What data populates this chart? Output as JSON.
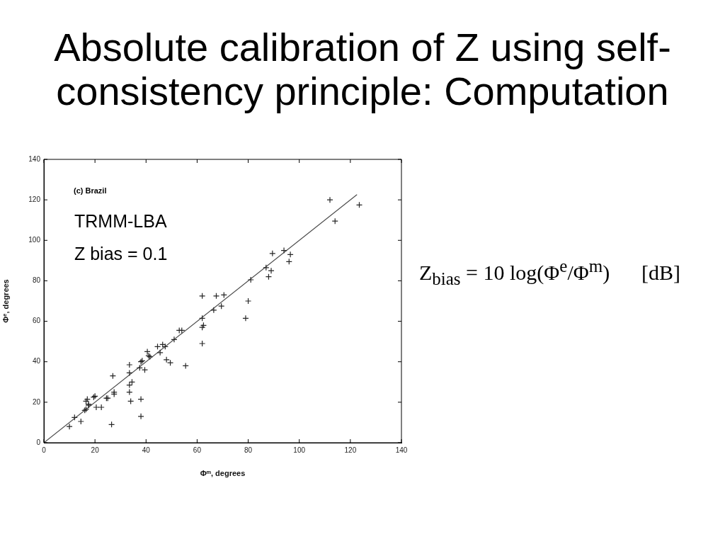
{
  "chart_data": {
    "type": "scatter",
    "title": "Absolute calibration of Z using self-consistency principle: Computation",
    "xlabel": "Φᵐ, degrees",
    "ylabel": "Φᵉ, degrees",
    "annotations": [
      "(c) Brazil",
      "TRMM-LBA",
      "Z bias = 0.1",
      "Z$_{bias}$ = 10 log(Φ$^{e}$/Φ$^{m}$)      [dB]"
    ],
    "series": [
      {
        "type": "scatter",
        "color": "#262626",
        "marker": "cross",
        "x": [
          10,
          12,
          14.5,
          16,
          16.5,
          16.5,
          17,
          17.5,
          17.5,
          19.5,
          20,
          20.5,
          22.5,
          24.5,
          25,
          26.5,
          27,
          27.5,
          27.5,
          33.5,
          33.5,
          33.5,
          34.5,
          33.5,
          34,
          38,
          38,
          37.5,
          38,
          38.5,
          39.5,
          40.5,
          41,
          41.5,
          44.5,
          45.5,
          46.5,
          47.5,
          48,
          49.5,
          51,
          53,
          54,
          55.5,
          62,
          67.5,
          70.5,
          66.5,
          69.5,
          62,
          62.5,
          62,
          62,
          81,
          80,
          79,
          87,
          89,
          88,
          89.5,
          94,
          96.5,
          96,
          112,
          114,
          123.5
        ],
        "values": [
          8,
          12.5,
          10.5,
          16,
          16.5,
          20.5,
          21.5,
          19,
          18.5,
          22.5,
          23,
          17.5,
          17.5,
          22,
          22,
          9,
          33,
          25,
          24,
          38.5,
          34.5,
          28.5,
          30,
          25,
          20.5,
          21.5,
          13,
          37,
          40,
          40.5,
          36,
          45,
          43,
          42.5,
          47.5,
          44.5,
          48.5,
          47.5,
          41,
          39.5,
          51,
          55.5,
          55.5,
          38,
          72.5,
          72.5,
          73,
          65.5,
          67.5,
          61.5,
          58,
          57,
          49,
          80.5,
          70,
          61.5,
          86.5,
          85,
          82,
          93.5,
          95,
          93,
          89.5,
          120,
          109.5,
          117.5
        ]
      },
      {
        "type": "line",
        "color": "#4d4d4d",
        "x": [
          0,
          122.5
        ],
        "values": [
          0,
          122.5
        ]
      }
    ],
    "xlim": [
      0,
      140
    ],
    "ylim": [
      0,
      140
    ],
    "xticks": [
      0,
      20,
      40,
      60,
      80,
      100,
      120,
      140
    ],
    "yticks": [
      0,
      20,
      40,
      60,
      80,
      100,
      120,
      140
    ],
    "grid": false,
    "legend": false
  }
}
